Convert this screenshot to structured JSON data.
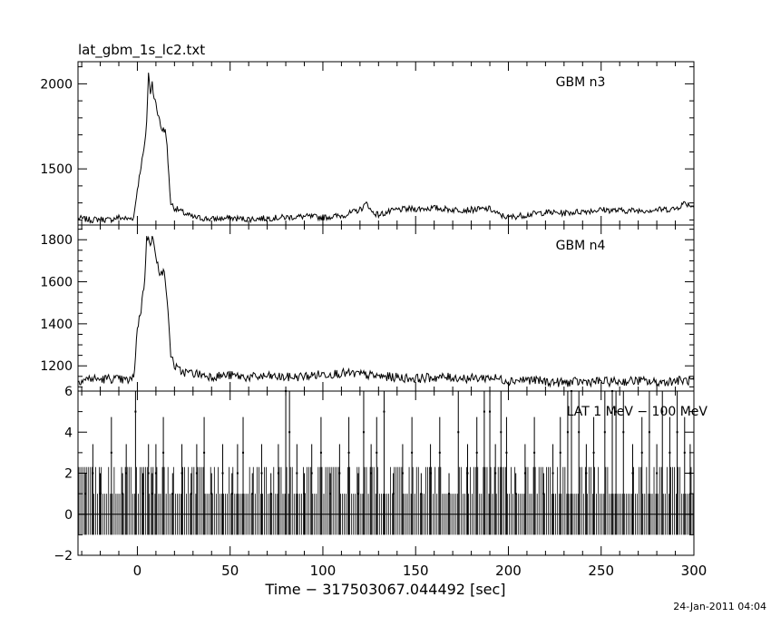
{
  "file_title": "lat_gbm_1s_lc2.txt",
  "footer_date": "24-Jan-2011 04:04",
  "xlabel": "Time − 317503067.044492 [sec]",
  "chart_data": {
    "type": "line",
    "xlim": [
      -32,
      300
    ],
    "x_ticks": [
      0,
      50,
      100,
      150,
      200,
      250,
      300
    ],
    "x_tick_labels": [
      "0",
      "50",
      "100",
      "150",
      "200",
      "250",
      "300"
    ],
    "panels": [
      {
        "label": "GBM n3",
        "ylim": [
          1170,
          2130
        ],
        "y_ticks": [
          1500,
          2000
        ],
        "y_tick_labels": [
          "1500",
          "2000"
        ],
        "series": [
          {
            "x": [
              -32,
              -25,
              -20,
              -15,
              -10,
              -5,
              -2,
              0,
              2,
              4,
              5,
              6,
              7,
              8,
              9,
              10,
              11,
              12,
              13,
              14,
              15,
              16,
              17,
              18,
              20,
              22,
              25,
              30,
              40,
              50,
              60,
              70,
              80,
              90,
              100,
              110,
              115,
              120,
              124,
              126,
              130,
              140,
              150,
              160,
              170,
              180,
              190,
              195,
              200,
              210,
              220,
              230,
              240,
              250,
              260,
              270,
              280,
              290,
              295,
              300
            ],
            "y": [
              1210,
              1200,
              1205,
              1200,
              1215,
              1205,
              1215,
              1380,
              1520,
              1640,
              1780,
              2060,
              1950,
              2010,
              1920,
              1880,
              1820,
              1800,
              1720,
              1740,
              1720,
              1640,
              1450,
              1300,
              1270,
              1260,
              1240,
              1215,
              1205,
              1210,
              1205,
              1210,
              1215,
              1220,
              1215,
              1225,
              1240,
              1260,
              1300,
              1250,
              1230,
              1260,
              1265,
              1270,
              1260,
              1260,
              1265,
              1230,
              1215,
              1230,
              1245,
              1240,
              1250,
              1260,
              1255,
              1255,
              1260,
              1265,
              1300,
              1280
            ]
          }
        ]
      },
      {
        "label": "GBM n4",
        "ylim": [
          1080,
          1870
        ],
        "y_ticks": [
          1200,
          1400,
          1600,
          1800
        ],
        "y_tick_labels": [
          "1200",
          "1400",
          "1600",
          "1800"
        ],
        "series": [
          {
            "x": [
              -32,
              -25,
              -20,
              -15,
              -10,
              -5,
              -2,
              0,
              2,
              4,
              5,
              6,
              7,
              8,
              9,
              10,
              11,
              12,
              13,
              14,
              15,
              16,
              17,
              18,
              20,
              22,
              25,
              30,
              40,
              50,
              60,
              70,
              80,
              90,
              100,
              110,
              120,
              130,
              140,
              150,
              160,
              170,
              180,
              190,
              200,
              210,
              220,
              230,
              240,
              250,
              260,
              270,
              280,
              290,
              300
            ],
            "y": [
              1130,
              1140,
              1135,
              1140,
              1135,
              1130,
              1140,
              1380,
              1470,
              1620,
              1800,
              1820,
              1790,
              1810,
              1780,
              1700,
              1680,
              1650,
              1660,
              1640,
              1620,
              1520,
              1380,
              1260,
              1200,
              1180,
              1170,
              1165,
              1150,
              1155,
              1145,
              1150,
              1145,
              1150,
              1160,
              1165,
              1160,
              1150,
              1145,
              1140,
              1145,
              1145,
              1140,
              1145,
              1130,
              1135,
              1125,
              1120,
              1125,
              1125,
              1125,
              1130,
              1120,
              1130,
              1130
            ]
          }
        ]
      },
      {
        "label": "LAT 1 MeV − 100 MeV",
        "ylim": [
          -2,
          6
        ],
        "y_ticks": [
          -2,
          0,
          2,
          4,
          6
        ],
        "y_tick_labels": [
          "−2",
          "0",
          "2",
          "4",
          "6"
        ],
        "stems": {
          "x": [
            -28,
            -24,
            -20,
            -14,
            -8,
            -6,
            -1,
            3,
            6,
            8,
            10,
            14,
            19,
            24,
            29,
            32,
            36,
            40,
            46,
            51,
            54,
            57,
            62,
            67,
            72,
            76,
            80,
            82,
            86,
            90,
            94,
            99,
            104,
            109,
            114,
            119,
            122,
            126,
            129,
            133,
            138,
            143,
            148,
            153,
            158,
            163,
            168,
            173,
            178,
            183,
            187,
            190,
            193,
            196,
            199,
            204,
            209,
            214,
            219,
            224,
            228,
            232,
            234,
            238,
            242,
            246,
            252,
            256,
            258,
            262,
            267,
            272,
            276,
            280,
            283,
            287,
            291,
            295,
            298
          ],
          "y": [
            1,
            2,
            1,
            3,
            1,
            2,
            5,
            1,
            2,
            1,
            2,
            3,
            1,
            2,
            1,
            2,
            3,
            1,
            2,
            1,
            2,
            3,
            1,
            2,
            1,
            2,
            6,
            4,
            2,
            1,
            2,
            3,
            1,
            2,
            3,
            1,
            4,
            2,
            3,
            5,
            1,
            2,
            3,
            1,
            2,
            3,
            1,
            4,
            2,
            3,
            5,
            5,
            2,
            4,
            3,
            1,
            2,
            3,
            1,
            2,
            3,
            4,
            6,
            4,
            2,
            3,
            4,
            6,
            5,
            4,
            2,
            3,
            4,
            2,
            5,
            3,
            4,
            3,
            2
          ],
          "negative_floor": -1
        }
      }
    ]
  }
}
